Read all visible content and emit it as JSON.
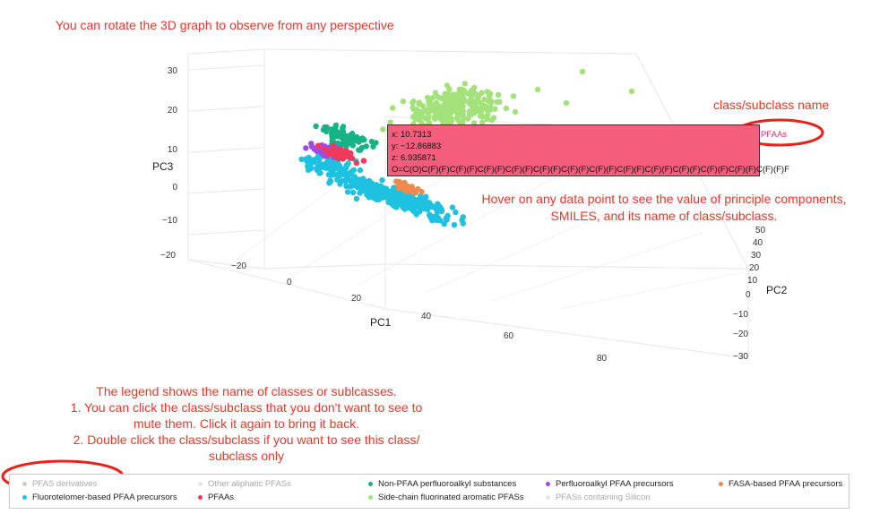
{
  "annotations": {
    "rotate": "You can rotate the 3D graph to observe from any perspective",
    "class_name": "class/subclass name",
    "hover_line1": "Hover on any data point to see the value of principle components,",
    "hover_line2": "SMILES, and its name of class/subclass.",
    "legend_l1": "The legend shows the name of classes or sublcasses.",
    "legend_l2": "1. You can click the class/subclass that you don't want to see to",
    "legend_l3": "mute them. Click it again to bring it back.",
    "legend_l4": "2. Double click the class/subclass if you want to see this class/",
    "legend_l5": "subclass only"
  },
  "hover": {
    "x": "x: 10.7313",
    "y": "y: −12.86883",
    "z": "z: 6.935871",
    "smiles": "O=C(O)C(F)(F)C(F)(F)C(F)(F)C(F)(F)C(F)(F)C(F)(F)C(F)(F)C(F)(F)C(F)(F)C(F)(F)C(F)(F)C(F)(F)C(F)(F)F",
    "name": "PFAAs"
  },
  "colors": {
    "annotation": "#e8362a",
    "pfas_derivatives": "#cccccc",
    "fluorotelomer": "#1ec1e0",
    "other_aliphatic": "#e6e6e6",
    "pfaas": "#ef3a5d",
    "non_pfaa": "#16b386",
    "side_chain": "#a3e27a",
    "perfluoroalkyl_precursors": "#a04be6",
    "silicon": "#e6e6e6",
    "fasa": "#ef8a4f"
  },
  "chart_data": {
    "type": "scatter",
    "title": "",
    "axes": {
      "PC1": {
        "label": "PC1",
        "ticks": [
          "−20",
          "0",
          "20",
          "40",
          "60",
          "80"
        ]
      },
      "PC2": {
        "label": "PC2",
        "ticks": [
          "50",
          "40",
          "30",
          "20",
          "10",
          "0",
          "−10",
          "−20",
          "−30"
        ]
      },
      "PC3": {
        "label": "PC3",
        "ticks": [
          "30",
          "20",
          "10",
          "0",
          "−10",
          "−20"
        ]
      }
    },
    "legend": [
      {
        "name": "PFAS derivatives",
        "color": "#cccccc",
        "muted": true
      },
      {
        "name": "Fluorotelomer-based PFAA precursors",
        "color": "#1ec1e0",
        "muted": false
      },
      {
        "name": "Other aliphatic PFASs",
        "color": "#e6e6e6",
        "muted": true
      },
      {
        "name": "PFAAs",
        "color": "#ef3a5d",
        "muted": false
      },
      {
        "name": "Non-PFAA perfluoroalkyl substances",
        "color": "#16b386",
        "muted": false
      },
      {
        "name": "Side-chain fluorinated aromatic PFASs",
        "color": "#a3e27a",
        "muted": false
      },
      {
        "name": "Perfluoroalkyl PFAA precursors",
        "color": "#a04be6",
        "muted": false
      },
      {
        "name": "PFASs containing Silicon",
        "color": "#e6e6e6",
        "muted": true
      },
      {
        "name": "FASA-based PFAA precursors",
        "color": "#ef8a4f",
        "muted": false
      }
    ]
  }
}
